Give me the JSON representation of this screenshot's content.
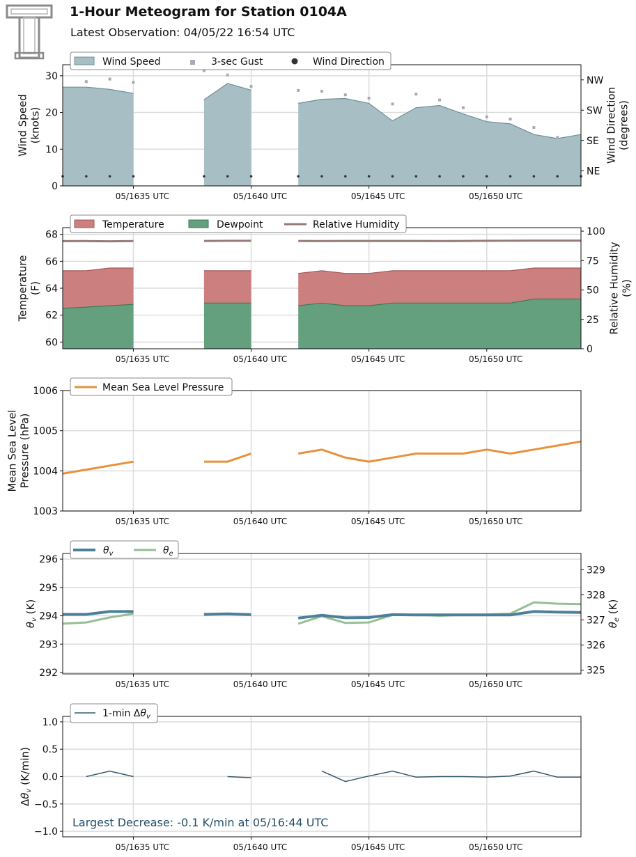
{
  "header": {
    "title": "1-Hour Meteogram for Station 0104A",
    "subtitle": "Latest Observation: 04/05/22 16:54 UTC"
  },
  "colors": {
    "wind_fill": "#a7bfc4",
    "wind_edge": "#6f8f97",
    "gust": "#a8a8b8",
    "direction": "#333333",
    "temp_fill": "#cc7f7f",
    "temp_edge": "#a35a5a",
    "dew_fill": "#649f7e",
    "dew_edge": "#3e7a56",
    "rh": "#947b79",
    "pressure": "#e8913a",
    "theta_v": "#4e7f99",
    "theta_e": "#95bf95",
    "dtheta": "#33586d",
    "annotation": "#24506b",
    "grid": "#dcdcdc"
  },
  "chart_data": [
    {
      "id": "wind",
      "type": "area",
      "x_tick_labels": [
        "05/1635 UTC",
        "05/1640 UTC",
        "05/1645 UTC",
        "05/1650 UTC"
      ],
      "x_ticks": [
        1635,
        1640,
        1645,
        1650
      ],
      "xlim": [
        1632,
        1654
      ],
      "ylabel": "Wind Speed\n(knots)",
      "ylim": [
        0,
        33
      ],
      "yticks": [
        0,
        10,
        20,
        30
      ],
      "y2label": "Wind Direction\n(degrees)",
      "y2ticks_labels": [
        "NE",
        "SE",
        "SW",
        "NW"
      ],
      "y2ticks_values": [
        45,
        135,
        225,
        315
      ],
      "y2lim": [
        0,
        360
      ],
      "legend": [
        "Wind Speed",
        "3-sec Gust",
        "Wind Direction"
      ],
      "wind_speed": [
        [
          [
            1632,
            26.9
          ],
          [
            1633,
            26.9
          ],
          [
            1634,
            26.3
          ],
          [
            1635,
            25.2
          ]
        ],
        [
          [
            1638,
            23.5
          ],
          [
            1639,
            27.9
          ],
          [
            1640,
            26.1
          ]
        ],
        [
          [
            1642,
            22.5
          ],
          [
            1643,
            23.6
          ],
          [
            1644,
            23.8
          ],
          [
            1645,
            22.5
          ],
          [
            1646,
            17.7
          ],
          [
            1647,
            21.3
          ],
          [
            1648,
            21.9
          ],
          [
            1649,
            19.6
          ],
          [
            1650,
            17.5
          ],
          [
            1651,
            16.9
          ],
          [
            1652,
            14
          ],
          [
            1653,
            12.9
          ],
          [
            1654,
            14
          ]
        ]
      ],
      "gusts": [
        [
          1633,
          28.4
        ],
        [
          1634,
          29.1
        ],
        [
          1635,
          28.2
        ],
        [
          1638,
          31.4
        ],
        [
          1639,
          30.2
        ],
        [
          1640,
          27.1
        ],
        [
          1642,
          26
        ],
        [
          1643,
          25.8
        ],
        [
          1644,
          24.8
        ],
        [
          1645,
          23.9
        ],
        [
          1646,
          22.3
        ],
        [
          1647,
          25
        ],
        [
          1648,
          23.4
        ],
        [
          1649,
          21.3
        ],
        [
          1650,
          18.8
        ],
        [
          1651,
          18.2
        ],
        [
          1652,
          15.9
        ],
        [
          1653,
          13.2
        ]
      ],
      "direction": [
        [
          1632,
          45
        ],
        [
          1633,
          45
        ],
        [
          1634,
          45
        ],
        [
          1635,
          45
        ],
        [
          1638,
          45
        ],
        [
          1639,
          45
        ],
        [
          1640,
          45
        ],
        [
          1642,
          45
        ],
        [
          1643,
          45
        ],
        [
          1644,
          45
        ],
        [
          1645,
          45
        ],
        [
          1646,
          45
        ],
        [
          1647,
          45
        ],
        [
          1648,
          45
        ],
        [
          1649,
          45
        ],
        [
          1650,
          45
        ],
        [
          1651,
          45
        ],
        [
          1652,
          45
        ],
        [
          1653,
          45
        ],
        [
          1654,
          45
        ]
      ]
    },
    {
      "id": "temp",
      "type": "area",
      "x_tick_labels": [
        "05/1635 UTC",
        "05/1640 UTC",
        "05/1645 UTC",
        "05/1650 UTC"
      ],
      "x_ticks": [
        1635,
        1640,
        1645,
        1650
      ],
      "xlim": [
        1632,
        1654
      ],
      "ylabel": "Temperature\n(F)",
      "ylim": [
        59.5,
        68.5
      ],
      "yticks": [
        60,
        62,
        64,
        66,
        68
      ],
      "y2label": "Relative Humidity\n(%)",
      "y2lim": [
        0,
        103
      ],
      "y2ticks": [
        0,
        25,
        50,
        75,
        100
      ],
      "legend": [
        "Temperature",
        "Dewpoint",
        "Relative Humidity"
      ],
      "temperature": [
        [
          [
            1632,
            65.3
          ],
          [
            1633,
            65.3
          ],
          [
            1634,
            65.5
          ],
          [
            1635,
            65.5
          ]
        ],
        [
          [
            1638,
            65.3
          ],
          [
            1639,
            65.3
          ],
          [
            1640,
            65.3
          ]
        ],
        [
          [
            1642,
            65.1
          ],
          [
            1643,
            65.3
          ],
          [
            1644,
            65.1
          ],
          [
            1645,
            65.1
          ],
          [
            1646,
            65.3
          ],
          [
            1647,
            65.3
          ],
          [
            1648,
            65.3
          ],
          [
            1649,
            65.3
          ],
          [
            1650,
            65.3
          ],
          [
            1651,
            65.3
          ],
          [
            1652,
            65.5
          ],
          [
            1653,
            65.5
          ],
          [
            1654,
            65.5
          ]
        ]
      ],
      "dewpoint": [
        [
          [
            1632,
            62.5
          ],
          [
            1633,
            62.6
          ],
          [
            1634,
            62.7
          ],
          [
            1635,
            62.8
          ]
        ],
        [
          [
            1638,
            62.9
          ],
          [
            1639,
            62.9
          ],
          [
            1640,
            62.9
          ]
        ],
        [
          [
            1642,
            62.7
          ],
          [
            1643,
            62.9
          ],
          [
            1644,
            62.7
          ],
          [
            1645,
            62.7
          ],
          [
            1646,
            62.9
          ],
          [
            1647,
            62.9
          ],
          [
            1648,
            62.9
          ],
          [
            1649,
            62.9
          ],
          [
            1650,
            62.9
          ],
          [
            1651,
            62.9
          ],
          [
            1652,
            63.2
          ],
          [
            1653,
            63.2
          ],
          [
            1654,
            63.2
          ]
        ]
      ],
      "relative_humidity": [
        [
          [
            1632,
            91.5
          ],
          [
            1633,
            91.6
          ],
          [
            1634,
            91.4
          ],
          [
            1635,
            91.6
          ]
        ],
        [
          [
            1638,
            91.7
          ],
          [
            1639,
            91.8
          ],
          [
            1640,
            91.8
          ]
        ],
        [
          [
            1642,
            91.7
          ],
          [
            1643,
            91.6
          ],
          [
            1644,
            91.7
          ],
          [
            1645,
            91.7
          ],
          [
            1646,
            91.7
          ],
          [
            1647,
            91.7
          ],
          [
            1648,
            91.6
          ],
          [
            1649,
            91.7
          ],
          [
            1650,
            91.8
          ],
          [
            1651,
            91.9
          ],
          [
            1652,
            92
          ],
          [
            1653,
            92
          ],
          [
            1654,
            92
          ]
        ]
      ]
    },
    {
      "id": "pressure",
      "type": "line",
      "x_tick_labels": [
        "05/1635 UTC",
        "05/1640 UTC",
        "05/1645 UTC",
        "05/1650 UTC"
      ],
      "x_ticks": [
        1635,
        1640,
        1645,
        1650
      ],
      "xlim": [
        1632,
        1654
      ],
      "ylabel": "Mean Sea Level\nPressure (hPa)",
      "ylim": [
        1003,
        1006
      ],
      "yticks": [
        1003,
        1004,
        1005,
        1006
      ],
      "legend": [
        "Mean Sea Level Pressure"
      ],
      "series": [
        [
          [
            1632,
            1003.93
          ],
          [
            1633,
            1004.03
          ],
          [
            1634,
            1004.13
          ],
          [
            1635,
            1004.23
          ]
        ],
        [
          [
            1638,
            1004.23
          ],
          [
            1639,
            1004.23
          ],
          [
            1640,
            1004.43
          ]
        ],
        [
          [
            1642,
            1004.43
          ],
          [
            1643,
            1004.53
          ],
          [
            1644,
            1004.33
          ],
          [
            1645,
            1004.23
          ],
          [
            1646,
            1004.33
          ],
          [
            1647,
            1004.43
          ],
          [
            1648,
            1004.43
          ],
          [
            1649,
            1004.43
          ],
          [
            1650,
            1004.53
          ],
          [
            1651,
            1004.43
          ],
          [
            1652,
            1004.53
          ],
          [
            1653,
            1004.63
          ],
          [
            1654,
            1004.73
          ]
        ]
      ]
    },
    {
      "id": "theta",
      "type": "line",
      "x_tick_labels": [
        "05/1635 UTC",
        "05/1640 UTC",
        "05/1645 UTC",
        "05/1650 UTC"
      ],
      "x_ticks": [
        1635,
        1640,
        1645,
        1650
      ],
      "xlim": [
        1632,
        1654
      ],
      "ylabel": "θv (K)",
      "ylim": [
        291.95,
        296.2
      ],
      "yticks": [
        292,
        293,
        294,
        295,
        296
      ],
      "y2label": "θe (K)",
      "y2lim": [
        324.85,
        329.65
      ],
      "y2ticks": [
        325,
        326,
        327,
        328,
        329
      ],
      "legend": [
        "θv",
        "θe"
      ],
      "theta_v": [
        [
          [
            1632,
            294.05
          ],
          [
            1633,
            294.05
          ],
          [
            1634,
            294.15
          ],
          [
            1635,
            294.15
          ]
        ],
        [
          [
            1638,
            294.05
          ],
          [
            1639,
            294.07
          ],
          [
            1640,
            294.04
          ]
        ],
        [
          [
            1642,
            293.92
          ],
          [
            1643,
            294.02
          ],
          [
            1644,
            293.93
          ],
          [
            1645,
            293.94
          ],
          [
            1646,
            294.04
          ],
          [
            1647,
            294.03
          ],
          [
            1648,
            294.03
          ],
          [
            1649,
            294.03
          ],
          [
            1650,
            294.03
          ],
          [
            1651,
            294.03
          ],
          [
            1652,
            294.15
          ],
          [
            1653,
            294.13
          ],
          [
            1654,
            294.12
          ]
        ]
      ],
      "theta_e": [
        [
          [
            1632,
            326.85
          ],
          [
            1633,
            326.9
          ],
          [
            1634,
            327.1
          ],
          [
            1635,
            327.25
          ]
        ],
        [
          [
            1638,
            327.2
          ],
          [
            1639,
            327.25
          ],
          [
            1640,
            327.2
          ]
        ],
        [
          [
            1642,
            326.85
          ],
          [
            1643,
            327.15
          ],
          [
            1644,
            326.88
          ],
          [
            1645,
            326.9
          ],
          [
            1646,
            327.2
          ],
          [
            1647,
            327.2
          ],
          [
            1648,
            327.17
          ],
          [
            1649,
            327.2
          ],
          [
            1650,
            327.22
          ],
          [
            1651,
            327.25
          ],
          [
            1652,
            327.7
          ],
          [
            1653,
            327.65
          ],
          [
            1654,
            327.63
          ]
        ]
      ]
    },
    {
      "id": "dtheta",
      "type": "line",
      "x_tick_labels": [
        "05/1635 UTC",
        "05/1640 UTC",
        "05/1645 UTC",
        "05/1650 UTC"
      ],
      "x_ticks": [
        1635,
        1640,
        1645,
        1650
      ],
      "xlim": [
        1632,
        1654
      ],
      "ylabel": "Δθv (K/min)",
      "ylim": [
        -1.1,
        1.1
      ],
      "yticks": [
        -1.0,
        -0.5,
        0.0,
        0.5,
        1.0
      ],
      "ytick_labels": [
        "−1.0",
        "−0.5",
        "0.0",
        "0.5",
        "1.0"
      ],
      "legend": [
        "1-min Δθv"
      ],
      "annotation": "Largest Decrease: -0.1 K/min at 05/16:44 UTC",
      "series": [
        [
          [
            1633,
            0.0
          ],
          [
            1634,
            0.1
          ],
          [
            1635,
            0.0
          ]
        ],
        [
          [
            1639,
            0.0
          ],
          [
            1640,
            -0.02
          ]
        ],
        [
          [
            1643,
            0.1
          ],
          [
            1644,
            -0.09
          ],
          [
            1645,
            0.01
          ],
          [
            1646,
            0.1
          ],
          [
            1647,
            -0.01
          ],
          [
            1648,
            0.0
          ],
          [
            1649,
            0.0
          ],
          [
            1650,
            -0.01
          ],
          [
            1651,
            0.01
          ],
          [
            1652,
            0.1
          ],
          [
            1653,
            -0.01
          ],
          [
            1654,
            -0.01
          ]
        ]
      ]
    }
  ]
}
